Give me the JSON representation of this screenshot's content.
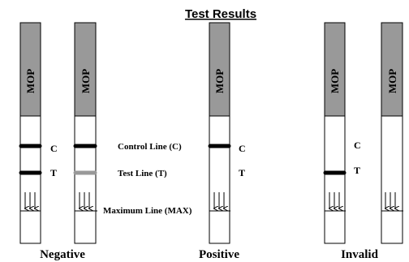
{
  "title": "Test Results",
  "strips": [
    {
      "label": "MOP"
    },
    {
      "label": "MOP"
    },
    {
      "label": "MOP"
    },
    {
      "label": "MOP"
    },
    {
      "label": "MOP"
    }
  ],
  "line_labels": [
    {
      "c": "C",
      "t": "T"
    },
    {
      "c": "C",
      "t": "T"
    },
    {
      "c": "C",
      "t": "T"
    }
  ],
  "legend": {
    "control": "Control Line (C)",
    "test": "Test Line (T)",
    "max": "Maximum Line (MAX)"
  },
  "results": [
    "Negative",
    "Positive",
    "Invalid"
  ]
}
